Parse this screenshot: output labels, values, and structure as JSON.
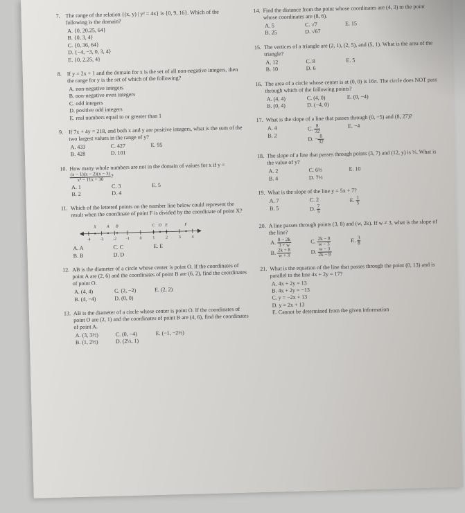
{
  "left": {
    "q7": {
      "num": "7.",
      "text": "The range of the relation {(x, y) | y² = 4x} is {0, 9, 16}. Which of the following is the domain?",
      "A": "A. {0, 20.25, 64}",
      "B": "B. {0, 3, 4}",
      "C": "C. {0, 36, 64}",
      "D": "D. {−4, −3, 0, 3, 4}",
      "E": "E. {0, 2.25, 4}"
    },
    "q8": {
      "num": "8.",
      "text": "If y = 2x + 1 and the domain for x is the set of all non-negative integers, then the range for y is the set of which of the following?",
      "A": "A. non-negative integers",
      "B": "B. non-negative even integers",
      "C": "C. odd integers",
      "D": "D. positive odd integers",
      "E": "E. real numbers equal to or greater than 1"
    },
    "q9": {
      "num": "9.",
      "text": "If 7x + 4y = 218, and both x and y are positive integers, what is the sum of the two largest values in the range of y?",
      "A": "A. 433",
      "B": "B. 428",
      "C": "C. 427",
      "D": "D. 101",
      "E": "E. 95"
    },
    "q10": {
      "num": "10.",
      "text": "How many whole numbers are not in the domain of values for x if y = ",
      "frac_n": "(x − 1)(x − 2)(x − 3)",
      "frac_d": "x² − 11x + 30",
      "A": "A. 1",
      "B": "B. 2",
      "C": "C. 3",
      "D": "D. 4",
      "E": "E. 5"
    },
    "q11": {
      "num": "11.",
      "text": "Which of the lettered points on the number line below could represent the result when the coordinate of point F is divided by the coordinate of point X?",
      "line_labels": [
        "X",
        "A",
        "B",
        "",
        "C",
        "D",
        "E",
        "F"
      ],
      "line_ticks": [
        "-4",
        "-3",
        "-2",
        "-1",
        "0",
        "1",
        "2",
        "3",
        "4"
      ],
      "A": "A. A",
      "B": "B. B",
      "C": "C. C",
      "D": "D. D",
      "E": "E. E"
    },
    "q12": {
      "num": "12.",
      "text": "AB is the diameter of a circle whose center is point O. If the coordinates of point A are (2, 6) and the coordinates of point B are (6, 2), find the coordinates of point O.",
      "A": "A. (4, 4)",
      "B": "B. (4, −4)",
      "C": "C. (2, −2)",
      "D": "D. (0, 0)",
      "E": "E. (2, 2)"
    },
    "q13": {
      "num": "13.",
      "text": "AB is the diameter of a circle whose center is point O. If the coordinates of point O are (2, 1) and the coordinates of point B are (4, 6), find the coordinates of point A.",
      "A": "A. (3, 3½)",
      "B": "B. (1, 2½)",
      "C": "C. (0, −4)",
      "D": "D. (2½, 1)",
      "E": "E. (−1, −2½)"
    }
  },
  "right": {
    "q14": {
      "num": "14.",
      "text": "Find the distance from the point whose coordinates are (4, 3) to the point whose coordinates are (8, 6).",
      "A": "A. 5",
      "B": "B. 25",
      "C": "C. √7",
      "D": "D. √67",
      "E": "E. 15"
    },
    "q15": {
      "num": "15.",
      "text": "The vertices of a triangle are (2, 1), (2, 5), and (5, 1). What is the area of the triangle?",
      "A": "A. 12",
      "B": "B. 10",
      "C": "C. 8",
      "D": "D. 6",
      "E": "E. 5"
    },
    "q16": {
      "num": "16.",
      "text": "The area of a circle whose center is at (0, 0) is 16π. The circle does NOT pass through which of the following points?",
      "A": "A. (4, 4)",
      "B": "B. (0, 4)",
      "C": "C. (4, 0)",
      "D": "D. (−4, 0)",
      "E": "E. (0, −4)"
    },
    "q17": {
      "num": "17.",
      "text": "What is the slope of a line that passes through (0, −5) and (8, 27)?",
      "A": "A. 4",
      "B": "B. 2",
      "Cn": "8",
      "Cd": "32",
      "Dn": "8",
      "Dd": "32",
      "E": "E. −4",
      "Clabel": "C.",
      "Dlabel": "D. −"
    },
    "q18": {
      "num": "18.",
      "text": "The slope of a line that passes through points (3, 7) and (12, y) is ⅓. What is the value of y?",
      "A": "A. 2",
      "B": "B. 4",
      "C": "C. 6⅔",
      "D": "D. 7⅓",
      "E": "E. 10"
    },
    "q19": {
      "num": "19.",
      "text": "What is the slope of the line y = 5x + 7?",
      "A": "A. 7",
      "B": "B. 5",
      "C": "C. 2",
      "Dn": "7",
      "Dd": "5",
      "Dlabel": "D.",
      "En": "1",
      "Ed": "5",
      "Elabel": "E."
    },
    "q20": {
      "num": "20.",
      "text": "A line passes through points (3, 8) and (w, 2k). If w ≠ 3, what is the slope of the line?",
      "Alabel": "A.",
      "An": "8 − 2k",
      "Ad": "3 + w",
      "Blabel": "B.",
      "Bn": "2k + 8",
      "Bd": "w + 3",
      "Clabel": "C.",
      "Cn": "2k − 8",
      "Cd": "w − 3",
      "Dlabel": "D.",
      "Dn": "w − 3",
      "Dd": "2k − 8",
      "Elabel": "E.",
      "En": "3",
      "Ed": "8"
    },
    "q21": {
      "num": "21.",
      "text": "What is the equation of the line that passes through the point (0, 13) and is parallel to the line 4x + 2y = 17?",
      "A": "A. 4x + 2y = 13",
      "B": "B. 4x + 2y = −13",
      "C": "C. y = −2x + 13",
      "D": "D. y = 2x + 13",
      "E": "E. Cannot be determined from the given information"
    }
  }
}
